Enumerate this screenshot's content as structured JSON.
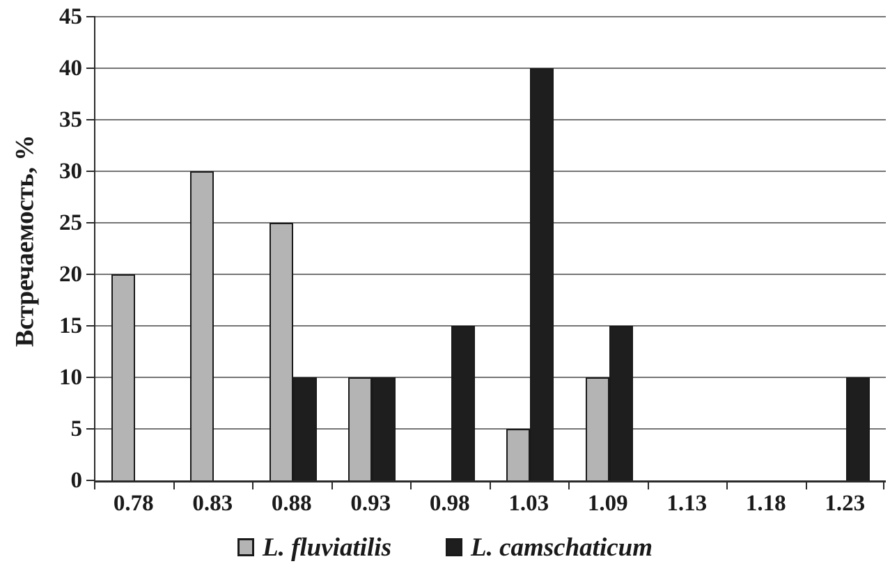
{
  "chart_data": {
    "type": "bar",
    "title": "",
    "categories": [
      "0.78",
      "0.83",
      "0.88",
      "0.93",
      "0.98",
      "1.03",
      "1.09",
      "1.13",
      "1.18",
      "1.23"
    ],
    "series": [
      {
        "name": "L. fluviatilis",
        "color": "#b4b4b4",
        "values": [
          20,
          30,
          25,
          10,
          0,
          5,
          10,
          0,
          0,
          0
        ]
      },
      {
        "name": "L. camschaticum",
        "color": "#1e1e1e",
        "values": [
          0,
          0,
          10,
          10,
          15,
          40,
          15,
          0,
          0,
          10
        ]
      }
    ],
    "xlabel": "",
    "ylabel": "Встречаемость, %",
    "ylim": [
      0,
      45
    ],
    "ytick_step": 5,
    "y_tick_labels": [
      "0",
      "5",
      "10",
      "15",
      "20",
      "25",
      "30",
      "35",
      "40",
      "45"
    ],
    "grid": "horizontal",
    "legend_position": "bottom-center"
  },
  "colors": {
    "background": "#ffffff",
    "gridline": "#757575",
    "axis": "#2a2a2a",
    "text": "#1a1a1a",
    "bar_outline": "#1a1a1a"
  }
}
